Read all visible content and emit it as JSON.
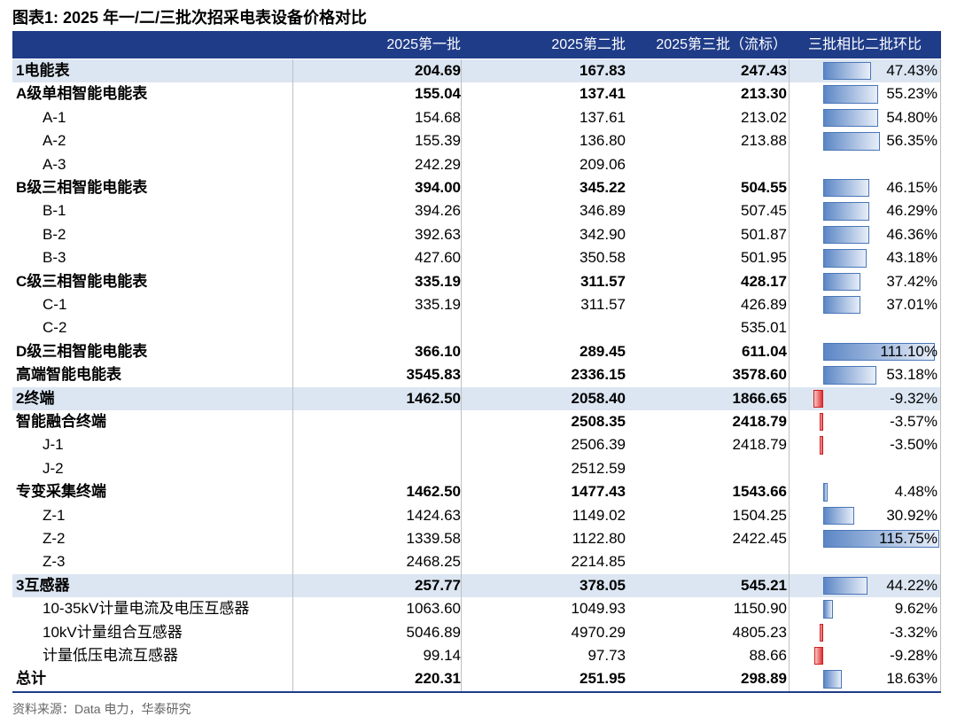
{
  "title": "图表1:  2025 年一/二/三批次招采电表设备价格对比",
  "source": "资料来源：Data 电力，华泰研究",
  "table": {
    "headers": [
      "2025第一批",
      "2025第二批",
      "2025第三批（流标）",
      "三批相比二批环比"
    ],
    "rows": [
      {
        "kind": "section",
        "label": "1电能表",
        "v1": "204.69",
        "v2": "167.83",
        "v3": "247.43",
        "change": {
          "value": 47.43,
          "label": "47.43%"
        }
      },
      {
        "kind": "group",
        "label": "A级单相智能电能表",
        "v1": "155.04",
        "v2": "137.41",
        "v3": "213.30",
        "change": {
          "value": 55.23,
          "label": "55.23%"
        }
      },
      {
        "kind": "item",
        "label": "A-1",
        "v1": "154.68",
        "v2": "137.61",
        "v3": "213.02",
        "change": {
          "value": 54.8,
          "label": "54.80%"
        }
      },
      {
        "kind": "item",
        "label": "A-2",
        "v1": "155.39",
        "v2": "136.80",
        "v3": "213.88",
        "change": {
          "value": 56.35,
          "label": "56.35%"
        }
      },
      {
        "kind": "item",
        "label": "A-3",
        "v1": "242.29",
        "v2": "209.06"
      },
      {
        "kind": "group",
        "label": "B级三相智能电能表",
        "v1": "394.00",
        "v2": "345.22",
        "v3": "504.55",
        "change": {
          "value": 46.15,
          "label": "46.15%"
        }
      },
      {
        "kind": "item",
        "label": "B-1",
        "v1": "394.26",
        "v2": "346.89",
        "v3": "507.45",
        "change": {
          "value": 46.29,
          "label": "46.29%"
        }
      },
      {
        "kind": "item",
        "label": "B-2",
        "v1": "392.63",
        "v2": "342.90",
        "v3": "501.87",
        "change": {
          "value": 46.36,
          "label": "46.36%"
        }
      },
      {
        "kind": "item",
        "label": "B-3",
        "v1": "427.60",
        "v2": "350.58",
        "v3": "501.95",
        "change": {
          "value": 43.18,
          "label": "43.18%"
        }
      },
      {
        "kind": "group",
        "label": "C级三相智能电能表",
        "v1": "335.19",
        "v2": "311.57",
        "v3": "428.17",
        "change": {
          "value": 37.42,
          "label": "37.42%"
        }
      },
      {
        "kind": "item",
        "label": "C-1",
        "v1": "335.19",
        "v2": "311.57",
        "v3": "426.89",
        "change": {
          "value": 37.01,
          "label": "37.01%"
        }
      },
      {
        "kind": "item",
        "label": "C-2",
        "v3": "535.01"
      },
      {
        "kind": "group",
        "label": "D级三相智能电能表",
        "v1": "366.10",
        "v2": "289.45",
        "v3": "611.04",
        "change": {
          "value": 111.1,
          "label": "111.10%"
        }
      },
      {
        "kind": "group",
        "label": "高端智能电能表",
        "v1": "3545.83",
        "v2": "2336.15",
        "v3": "3578.60",
        "change": {
          "value": 53.18,
          "label": "53.18%"
        }
      },
      {
        "kind": "section",
        "label": "2终端",
        "v1": "1462.50",
        "v2": "2058.40",
        "v3": "1866.65",
        "change": {
          "value": -9.32,
          "label": "-9.32%"
        }
      },
      {
        "kind": "group",
        "label": "智能融合终端",
        "v2": "2508.35",
        "v3": "2418.79",
        "change": {
          "value": -3.57,
          "label": "-3.57%"
        }
      },
      {
        "kind": "item",
        "label": "J-1",
        "v2": "2506.39",
        "v3": "2418.79",
        "change": {
          "value": -3.5,
          "label": "-3.50%"
        }
      },
      {
        "kind": "item",
        "label": "J-2",
        "v2": "2512.59"
      },
      {
        "kind": "group",
        "label": "专变采集终端",
        "v1": "1462.50",
        "v2": "1477.43",
        "v3": "1543.66",
        "change": {
          "value": 4.48,
          "label": "4.48%"
        }
      },
      {
        "kind": "item",
        "label": "Z-1",
        "v1": "1424.63",
        "v2": "1149.02",
        "v3": "1504.25",
        "change": {
          "value": 30.92,
          "label": "30.92%"
        }
      },
      {
        "kind": "item",
        "label": "Z-2",
        "v1": "1339.58",
        "v2": "1122.80",
        "v3": "2422.45",
        "change": {
          "value": 115.75,
          "label": "115.75%"
        }
      },
      {
        "kind": "item",
        "label": "Z-3",
        "v1": "2468.25",
        "v2": "2214.85"
      },
      {
        "kind": "section",
        "label": "3互感器",
        "v1": "257.77",
        "v2": "378.05",
        "v3": "545.21",
        "change": {
          "value": 44.22,
          "label": "44.22%"
        }
      },
      {
        "kind": "item",
        "label": "10-35kV计量电流及电压互感器",
        "v1": "1063.60",
        "v2": "1049.93",
        "v3": "1150.90",
        "change": {
          "value": 9.62,
          "label": "9.62%"
        }
      },
      {
        "kind": "item",
        "label": "10kV计量组合互感器",
        "v1": "5046.89",
        "v2": "4970.29",
        "v3": "4805.23",
        "change": {
          "value": -3.32,
          "label": "-3.32%"
        }
      },
      {
        "kind": "item",
        "label": "计量低压电流互感器",
        "v1": "99.14",
        "v2": "97.73",
        "v3": "88.66",
        "change": {
          "value": -9.28,
          "label": "-9.28%"
        }
      },
      {
        "kind": "group",
        "label": "总计",
        "v1": "220.31",
        "v2": "251.95",
        "v3": "298.89",
        "change": {
          "value": 18.63,
          "label": "18.63%"
        }
      }
    ]
  }
}
